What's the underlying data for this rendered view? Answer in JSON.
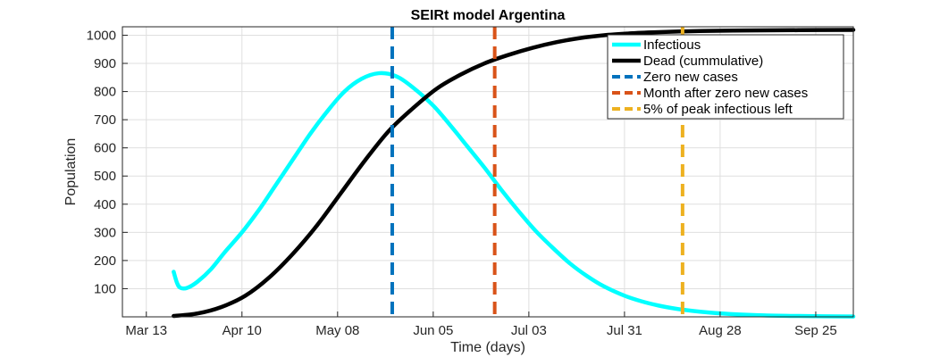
{
  "chart_data": {
    "type": "line",
    "title": "SEIRt model Argentina",
    "xlabel": "Time (days)",
    "ylabel": "Population",
    "x_axis": {
      "type": "date",
      "min": "2020-03-06",
      "max": "2020-10-06",
      "ticks": [
        {
          "date": "2020-03-13",
          "label": "Mar 13"
        },
        {
          "date": "2020-04-10",
          "label": "Apr 10"
        },
        {
          "date": "2020-05-08",
          "label": "May 08"
        },
        {
          "date": "2020-06-05",
          "label": "Jun 05"
        },
        {
          "date": "2020-07-03",
          "label": "Jul 03"
        },
        {
          "date": "2020-07-31",
          "label": "Jul 31"
        },
        {
          "date": "2020-08-28",
          "label": "Aug 28"
        },
        {
          "date": "2020-09-25",
          "label": "Sep 25"
        }
      ]
    },
    "y_axis": {
      "min": 0,
      "max": 1030,
      "ticks": [
        100,
        200,
        300,
        400,
        500,
        600,
        700,
        800,
        900,
        1000
      ]
    },
    "grid": true,
    "legend_position": "top-right",
    "series": [
      {
        "name": "Infectious",
        "color": "#00ffff",
        "style": "solid",
        "points": [
          [
            "2020-03-21",
            160
          ],
          [
            "2020-03-22",
            120
          ],
          [
            "2020-03-23",
            103
          ],
          [
            "2020-03-25",
            103
          ],
          [
            "2020-03-28",
            125
          ],
          [
            "2020-04-01",
            170
          ],
          [
            "2020-04-05",
            230
          ],
          [
            "2020-04-10",
            300
          ],
          [
            "2020-04-15",
            380
          ],
          [
            "2020-04-20",
            470
          ],
          [
            "2020-04-25",
            560
          ],
          [
            "2020-04-30",
            650
          ],
          [
            "2020-05-05",
            730
          ],
          [
            "2020-05-10",
            800
          ],
          [
            "2020-05-15",
            845
          ],
          [
            "2020-05-20",
            865
          ],
          [
            "2020-05-25",
            855
          ],
          [
            "2020-05-30",
            815
          ],
          [
            "2020-06-05",
            750
          ],
          [
            "2020-06-10",
            680
          ],
          [
            "2020-06-15",
            605
          ],
          [
            "2020-06-20",
            530
          ],
          [
            "2020-06-25",
            450
          ],
          [
            "2020-06-30",
            375
          ],
          [
            "2020-07-05",
            305
          ],
          [
            "2020-07-10",
            245
          ],
          [
            "2020-07-15",
            190
          ],
          [
            "2020-07-20",
            145
          ],
          [
            "2020-07-25",
            108
          ],
          [
            "2020-07-31",
            75
          ],
          [
            "2020-08-05",
            55
          ],
          [
            "2020-08-10",
            40
          ],
          [
            "2020-08-15",
            29
          ],
          [
            "2020-08-20",
            21
          ],
          [
            "2020-08-25",
            15
          ],
          [
            "2020-08-31",
            10
          ],
          [
            "2020-09-10",
            5
          ],
          [
            "2020-09-20",
            3
          ],
          [
            "2020-10-06",
            1
          ]
        ]
      },
      {
        "name": "Dead (cummulative)",
        "color": "#000000",
        "style": "solid",
        "points": [
          [
            "2020-03-21",
            3
          ],
          [
            "2020-03-28",
            12
          ],
          [
            "2020-04-04",
            35
          ],
          [
            "2020-04-11",
            75
          ],
          [
            "2020-04-18",
            140
          ],
          [
            "2020-04-25",
            225
          ],
          [
            "2020-05-02",
            325
          ],
          [
            "2020-05-09",
            440
          ],
          [
            "2020-05-16",
            555
          ],
          [
            "2020-05-23",
            660
          ],
          [
            "2020-05-30",
            740
          ],
          [
            "2020-06-06",
            810
          ],
          [
            "2020-06-13",
            860
          ],
          [
            "2020-06-20",
            900
          ],
          [
            "2020-06-27",
            930
          ],
          [
            "2020-07-04",
            955
          ],
          [
            "2020-07-11",
            975
          ],
          [
            "2020-07-18",
            990
          ],
          [
            "2020-07-25",
            1000
          ],
          [
            "2020-08-01",
            1006
          ],
          [
            "2020-08-08",
            1010
          ],
          [
            "2020-08-15",
            1013
          ],
          [
            "2020-08-22",
            1015
          ],
          [
            "2020-09-05",
            1017
          ],
          [
            "2020-09-20",
            1018
          ],
          [
            "2020-10-06",
            1019
          ]
        ]
      },
      {
        "name": "Zero new cases",
        "color": "#0072bd",
        "style": "dashed-vertical",
        "x": "2020-05-24"
      },
      {
        "name": "Month after zero new cases",
        "color": "#d95319",
        "style": "dashed-vertical",
        "x": "2020-06-23"
      },
      {
        "name": "5% of peak infectious left",
        "color": "#edb120",
        "style": "dashed-vertical",
        "x": "2020-08-17"
      }
    ]
  }
}
